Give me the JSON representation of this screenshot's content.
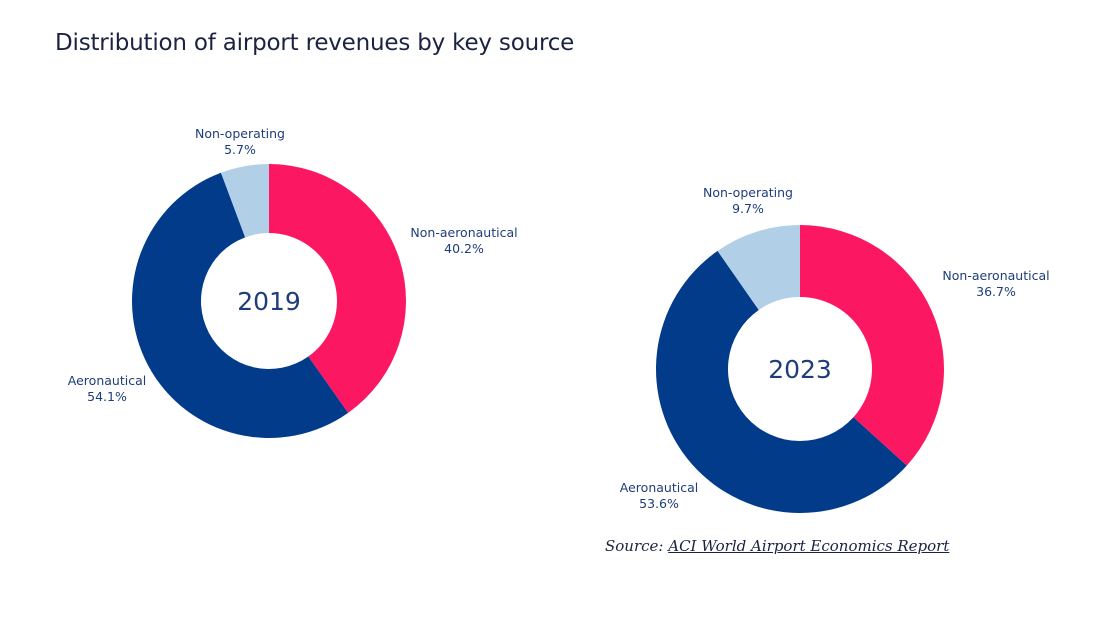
{
  "title": "Distribution of airport revenues by key source",
  "source": {
    "prefix": "Source: ",
    "link_text": "ACI World Airport Economics Report"
  },
  "colors": {
    "Non-aeronautical": "#fb1762",
    "Aeronautical": "#013b8a",
    "Non-operating": "#b2cfe8"
  },
  "chart_data": [
    {
      "type": "pie",
      "subtype": "donut",
      "title": "Distribution of airport revenues by key source",
      "center_label": "2019",
      "categories": [
        "Non-aeronautical",
        "Aeronautical",
        "Non-operating"
      ],
      "values": [
        40.2,
        54.1,
        5.7
      ],
      "unit": "%",
      "data_labels": [
        "Non-aeronautical\n40.2%",
        "Aeronautical\n54.1%",
        "Non-operating\n5.7%"
      ]
    },
    {
      "type": "pie",
      "subtype": "donut",
      "title": "Distribution of airport revenues by key source",
      "center_label": "2023",
      "categories": [
        "Non-aeronautical",
        "Aeronautical",
        "Non-operating"
      ],
      "values": [
        36.7,
        53.6,
        9.7
      ],
      "unit": "%",
      "data_labels": [
        "Non-aeronautical\n36.7%",
        "Aeronautical\n53.6%",
        "Non-operating\n9.7%"
      ]
    }
  ]
}
